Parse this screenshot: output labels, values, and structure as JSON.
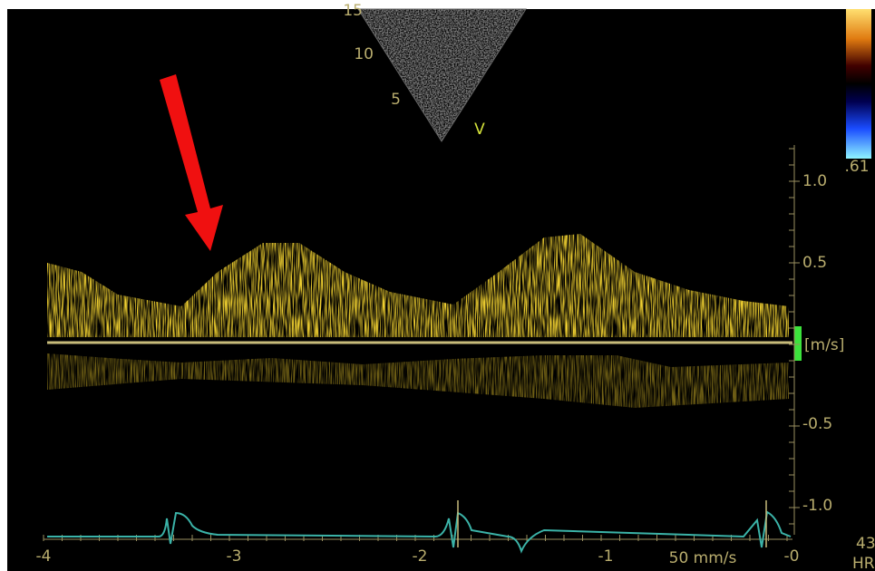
{
  "sector": {
    "depth_labels": [
      "15",
      "10",
      "5"
    ],
    "marker": "V"
  },
  "color_bar": {
    "label": ".61"
  },
  "velocity_axis": {
    "ticks": [
      "1.0",
      "0.5",
      "-0.5",
      "-1.0"
    ],
    "unit": "[m/s]"
  },
  "time_axis": {
    "ticks": [
      "-4",
      "-3",
      "-2",
      "-1",
      "-0"
    ],
    "sweep_speed": "50 mm/s"
  },
  "heart_rate": {
    "value": "43",
    "label": "HR"
  }
}
